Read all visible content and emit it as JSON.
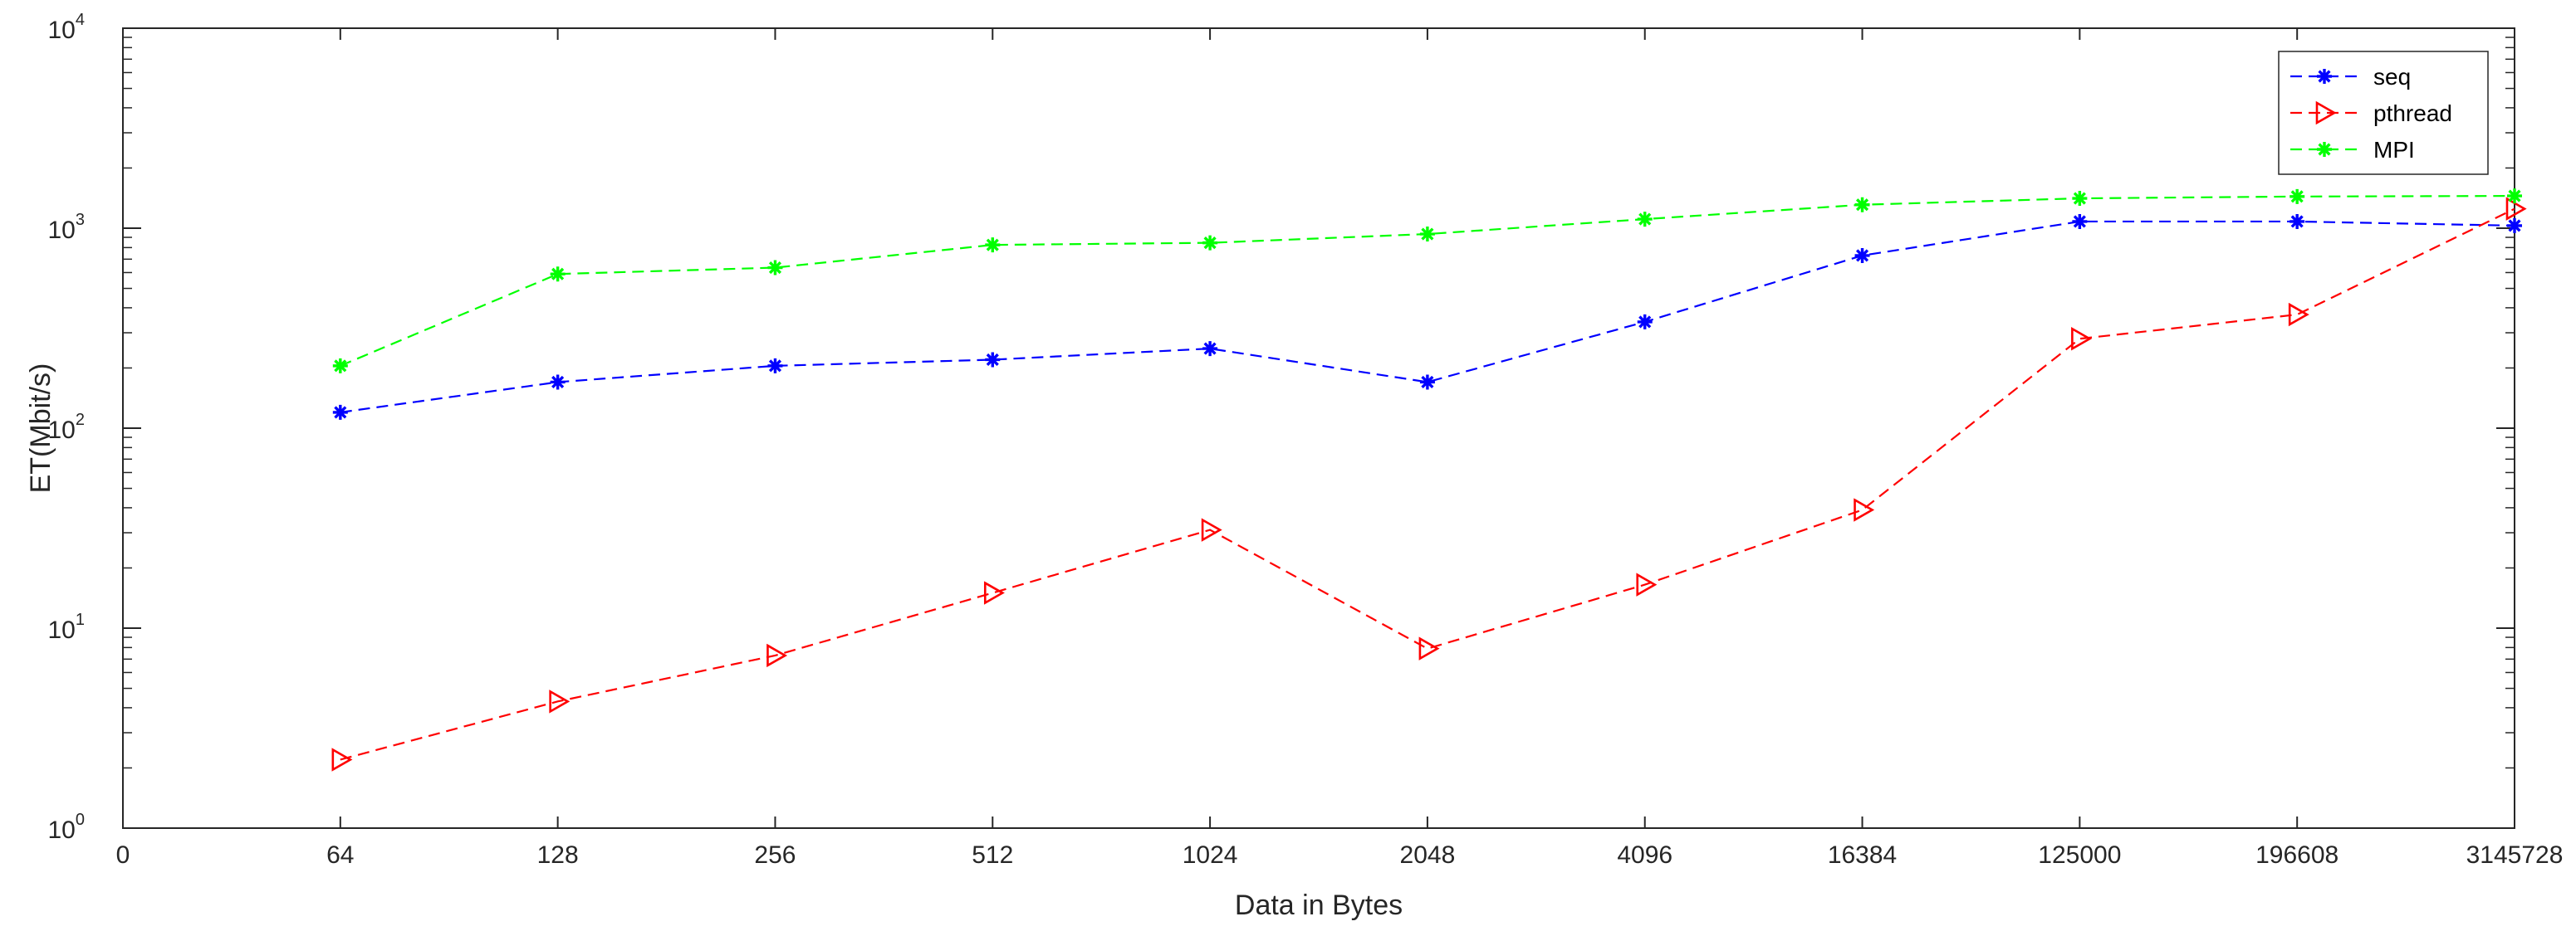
{
  "chart_data": {
    "type": "line",
    "xlabel": "Data in Bytes",
    "ylabel": "ET(Mbit/s)",
    "x_ticks": [
      "0",
      "64",
      "128",
      "256",
      "512",
      "1024",
      "2048",
      "4096",
      "16384",
      "125000",
      "196608",
      "3145728"
    ],
    "categories": [
      "64",
      "128",
      "256",
      "512",
      "1024",
      "2048",
      "4096",
      "16384",
      "125000",
      "196608",
      "3145728"
    ],
    "y_scale": "log",
    "ylim": [
      1,
      10000
    ],
    "y_ticks": [
      {
        "base": "10",
        "exp": "0",
        "value": 1
      },
      {
        "base": "10",
        "exp": "1",
        "value": 10
      },
      {
        "base": "10",
        "exp": "2",
        "value": 100
      },
      {
        "base": "10",
        "exp": "3",
        "value": 1000
      },
      {
        "base": "10",
        "exp": "4",
        "value": 10000
      }
    ],
    "grid": false,
    "legend_position": "top-right",
    "series": [
      {
        "name": "seq",
        "color": "#0000ff",
        "marker": "asterisk",
        "values": [
          120,
          170,
          205,
          220,
          250,
          170,
          340,
          730,
          1080,
          1080,
          1030
        ]
      },
      {
        "name": "pthread",
        "color": "#ff0000",
        "marker": "triangle-right",
        "values": [
          2.2,
          4.3,
          7.3,
          15,
          31,
          7.9,
          16.5,
          39,
          280,
          370,
          1250
        ]
      },
      {
        "name": "MPI",
        "color": "#00ff00",
        "marker": "asterisk",
        "values": [
          205,
          590,
          635,
          825,
          845,
          935,
          1110,
          1310,
          1410,
          1440,
          1450
        ]
      }
    ]
  }
}
